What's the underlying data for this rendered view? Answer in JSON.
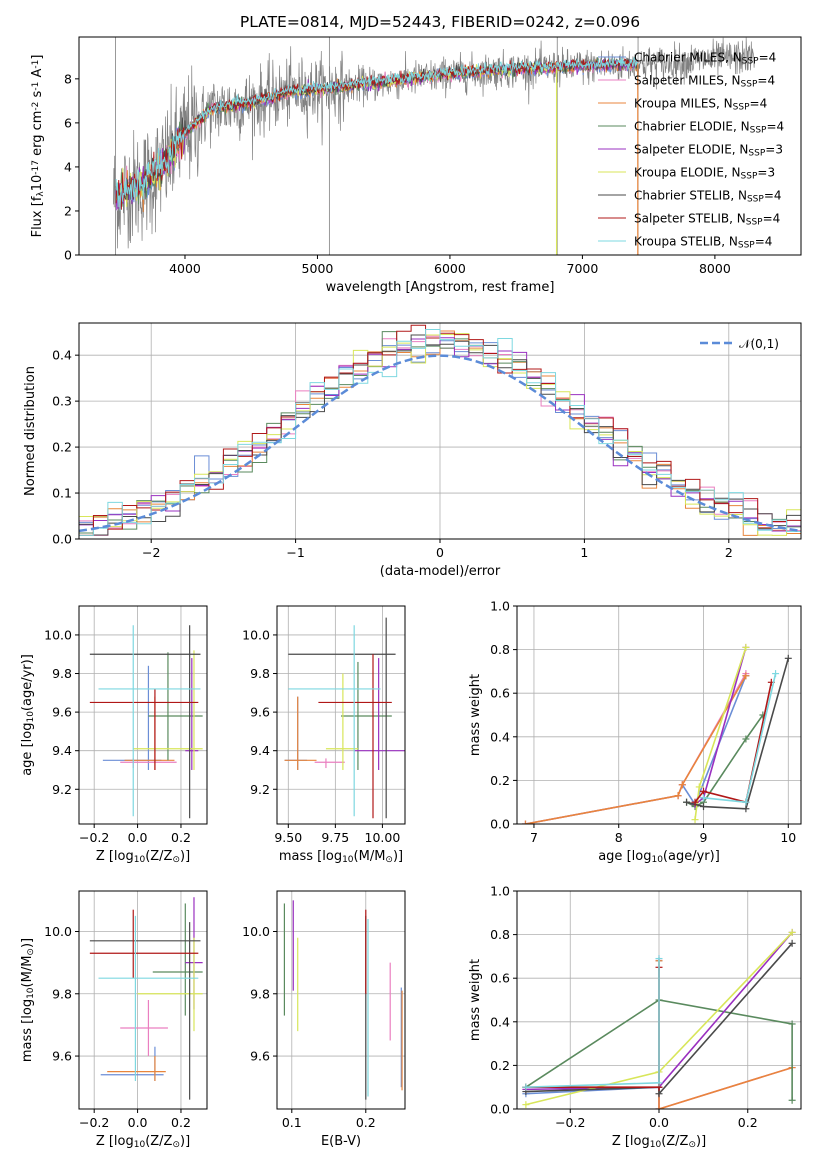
{
  "figure": {
    "title": "PLATE=0814, MJD=52443, FIBERID=0242, z=0.096"
  },
  "colors": {
    "Chabrier MILES": "#6b8ed6",
    "Salpeter MILES": "#ea7fc0",
    "Kroupa MILES": "#e8853c",
    "Chabrier ELODIE": "#5a8a5e",
    "Salpeter ELODIE": "#9a30c0",
    "Kroupa ELODIE": "#d8e65a",
    "Chabrier STELIB": "#4a4a4a",
    "Salpeter STELIB": "#b01818",
    "Kroupa STELIB": "#7ed8e0",
    "data": "#808080",
    "gaussian": "#5b8bd8"
  },
  "legend_spectrum": [
    "Chabrier MILES, N$_{SSP}$=4",
    "Salpeter MILES, N$_{SSP}$=4",
    "Kroupa MILES, N$_{SSP}$=4",
    "Chabrier ELODIE, N$_{SSP}$=4",
    "Salpeter ELODIE, N$_{SSP}$=3",
    "Kroupa ELODIE, N$_{SSP}$=3",
    "Chabrier STELIB, N$_{SSP}$=4",
    "Salpeter STELIB, N$_{SSP}$=4",
    "Kroupa STELIB, N$_{SSP}$=4"
  ],
  "chart_data": [
    {
      "id": "spectrum",
      "type": "line",
      "xlabel": "wavelength [Angstrom, rest frame]",
      "ylabel": "Flux [f$_\\lambda$10$^{-17}$ erg cm$^{-2}$ s$^{-1}$ A$^{-1}$]",
      "xlim": [
        3200,
        8650
      ],
      "ylim": [
        0,
        9.9
      ],
      "xticks": [
        4000,
        5000,
        6000,
        7000,
        8000
      ],
      "yticks": [
        0,
        2,
        4,
        6,
        8
      ],
      "continuum": {
        "x": [
          3500,
          3700,
          3850,
          4000,
          4200,
          4500,
          4800,
          5000,
          5300,
          5600,
          6000,
          6400,
          6800,
          7200,
          7600,
          8000,
          8300
        ],
        "y": [
          2.7,
          3.3,
          4.1,
          5.5,
          6.6,
          6.9,
          7.4,
          7.5,
          7.7,
          7.9,
          8.2,
          8.4,
          8.5,
          8.6,
          8.7,
          8.9,
          9.0
        ]
      },
      "data_range": [
        3460,
        8300
      ],
      "model_range": [
        3480,
        7420
      ]
    },
    {
      "id": "residuals",
      "type": "line",
      "xlabel": "(data-model)/error",
      "ylabel": "Normed distribution",
      "xlim": [
        -2.5,
        2.5
      ],
      "ylim": [
        0,
        0.47
      ],
      "xticks": [
        -2,
        -1,
        0,
        1,
        2
      ],
      "yticks": [
        0,
        0.1,
        0.2,
        0.3,
        0.4
      ],
      "legend": "$\\mathcal{N}(0,1)$",
      "bin_width": 0.1
    },
    {
      "id": "age_vs_z",
      "type": "scatter",
      "xlabel": "Z [log$_{10}$(Z/Z$_\\odot$)]",
      "ylabel": "age  [log$_{10}$(age/yr)]",
      "xlim": [
        -0.27,
        0.32
      ],
      "ylim": [
        9.02,
        10.15
      ],
      "xticks": [
        -0.2,
        0.0,
        0.2
      ],
      "yticks": [
        9.2,
        9.4,
        9.6,
        9.8,
        10.0
      ],
      "points": [
        {
          "m": "Chabrier MILES",
          "x": 0.05,
          "xe": [
            -0.16,
            0.11
          ],
          "y": 9.35,
          "ye": [
            9.3,
            9.84
          ]
        },
        {
          "m": "Salpeter MILES",
          "x": -0.02,
          "xe": [
            -0.08,
            0.18
          ],
          "y": 9.34,
          "ye": [
            9.31,
            9.36
          ]
        },
        {
          "m": "Kroupa MILES",
          "x": 0.08,
          "xe": [
            -0.06,
            0.17
          ],
          "y": 9.35,
          "ye": [
            9.3,
            9.68
          ]
        },
        {
          "m": "Chabrier ELODIE",
          "x": 0.14,
          "xe": [
            0.05,
            0.3
          ],
          "y": 9.58,
          "ye": [
            9.35,
            9.91
          ]
        },
        {
          "m": "Salpeter ELODIE",
          "x": 0.25,
          "xe": [
            0.22,
            0.28
          ],
          "y": 9.4,
          "ye": [
            9.3,
            9.88
          ]
        },
        {
          "m": "Kroupa ELODIE",
          "x": 0.26,
          "xe": [
            -0.02,
            0.3
          ],
          "y": 9.41,
          "ye": [
            9.3,
            9.92
          ]
        },
        {
          "m": "Chabrier STELIB",
          "x": 0.24,
          "xe": [
            -0.22,
            0.29
          ],
          "y": 9.9,
          "ye": [
            9.05,
            10.05
          ]
        },
        {
          "m": "Salpeter STELIB",
          "x": 0.08,
          "xe": [
            -0.22,
            0.28
          ],
          "y": 9.65,
          "ye": [
            9.3,
            9.72
          ]
        },
        {
          "m": "Kroupa STELIB",
          "x": -0.02,
          "xe": [
            -0.18,
            0.29
          ],
          "y": 9.72,
          "ye": [
            9.06,
            10.05
          ]
        }
      ]
    },
    {
      "id": "age_vs_mass",
      "type": "scatter",
      "xlabel": "mass [log$_{10}$(M/M$_\\odot$)]",
      "ylabel": "",
      "xlim": [
        9.44,
        10.12
      ],
      "ylim": [
        9.02,
        10.15
      ],
      "xticks": [
        9.5,
        9.75,
        10.0
      ],
      "xticklabels": [
        "9.50",
        "9.75",
        "10.00"
      ],
      "yticks": [
        9.2,
        9.4,
        9.6,
        9.8,
        10.0
      ],
      "points": [
        {
          "m": "Chabrier MILES",
          "x": 9.55,
          "xe": [
            9.48,
            9.6
          ],
          "y": 9.35,
          "ye": [
            9.3,
            9.68
          ]
        },
        {
          "m": "Salpeter MILES",
          "x": 9.7,
          "xe": [
            9.64,
            9.8
          ],
          "y": 9.34,
          "ye": [
            9.31,
            9.36
          ]
        },
        {
          "m": "Kroupa MILES",
          "x": 9.55,
          "xe": [
            9.48,
            9.65
          ],
          "y": 9.35,
          "ye": [
            9.3,
            9.68
          ]
        },
        {
          "m": "Chabrier ELODIE",
          "x": 9.87,
          "xe": [
            9.78,
            10.05
          ],
          "y": 9.58,
          "ye": [
            9.3,
            9.86
          ]
        },
        {
          "m": "Salpeter ELODIE",
          "x": 9.98,
          "xe": [
            9.85,
            10.12
          ],
          "y": 9.4,
          "ye": [
            9.3,
            9.88
          ]
        },
        {
          "m": "Kroupa ELODIE",
          "x": 9.79,
          "xe": [
            9.7,
            9.87
          ],
          "y": 9.41,
          "ye": [
            9.3,
            9.8
          ]
        },
        {
          "m": "Chabrier STELIB",
          "x": 10.02,
          "xe": [
            9.5,
            10.07
          ],
          "y": 9.9,
          "ye": [
            9.05,
            10.09
          ]
        },
        {
          "m": "Salpeter STELIB",
          "x": 9.95,
          "xe": [
            9.66,
            10.05
          ],
          "y": 9.65,
          "ye": [
            9.05,
            9.9
          ]
        },
        {
          "m": "Kroupa STELIB",
          "x": 9.85,
          "xe": [
            9.5,
            9.99
          ],
          "y": 9.72,
          "ye": [
            9.06,
            10.05
          ]
        }
      ]
    },
    {
      "id": "mass_weight_vs_age",
      "type": "line",
      "xlabel": "age  [log$_{10}$(age/yr)]",
      "ylabel": "mass weight",
      "xlim": [
        6.8,
        10.15
      ],
      "ylim": [
        0,
        1.0
      ],
      "xticks": [
        7,
        8,
        9,
        10
      ],
      "yticks": [
        0,
        0.2,
        0.4,
        0.6,
        0.8,
        1.0
      ],
      "series": [
        {
          "m": "Chabrier MILES",
          "x": [
            6.9,
            8.7,
            8.75,
            8.9,
            9.5
          ],
          "y": [
            0.0,
            0.13,
            0.18,
            0.09,
            0.68
          ]
        },
        {
          "m": "Salpeter MILES",
          "x": [
            6.9,
            8.7,
            8.75,
            9.5
          ],
          "y": [
            0.0,
            0.13,
            0.18,
            0.69
          ]
        },
        {
          "m": "Kroupa MILES",
          "x": [
            6.9,
            8.7,
            8.75,
            9.5
          ],
          "y": [
            0.0,
            0.13,
            0.18,
            0.68
          ]
        },
        {
          "m": "Chabrier ELODIE",
          "x": [
            8.8,
            8.9,
            9.0,
            9.5,
            9.7
          ],
          "y": [
            0.1,
            0.08,
            0.1,
            0.39,
            0.5
          ]
        },
        {
          "m": "Salpeter ELODIE",
          "x": [
            8.9,
            9.0,
            9.5
          ],
          "y": [
            0.09,
            0.12,
            0.81
          ]
        },
        {
          "m": "Kroupa ELODIE",
          "x": [
            8.9,
            8.95,
            9.5
          ],
          "y": [
            0.02,
            0.17,
            0.81
          ]
        },
        {
          "m": "Chabrier STELIB",
          "x": [
            8.8,
            9.0,
            9.5,
            10.0
          ],
          "y": [
            0.1,
            0.08,
            0.07,
            0.76
          ]
        },
        {
          "m": "Salpeter STELIB",
          "x": [
            8.9,
            9.0,
            9.5,
            9.8
          ],
          "y": [
            0.1,
            0.15,
            0.1,
            0.65
          ]
        },
        {
          "m": "Kroupa STELIB",
          "x": [
            9.0,
            9.5,
            9.85
          ],
          "y": [
            0.12,
            0.1,
            0.69
          ]
        }
      ]
    },
    {
      "id": "mass_vs_z",
      "type": "scatter",
      "xlabel": "Z [log$_{10}$(Z/Z$_\\odot$)]",
      "ylabel": "mass [log$_{10}$(M/M$_\\odot$)]",
      "xlim": [
        -0.27,
        0.32
      ],
      "ylim": [
        9.43,
        10.13
      ],
      "xticks": [
        -0.2,
        0.0,
        0.2
      ],
      "yticks": [
        9.6,
        9.8,
        10.0
      ],
      "points": [
        {
          "m": "Chabrier MILES",
          "x": 0.08,
          "xe": [
            -0.17,
            0.12
          ],
          "y": 9.54,
          "ye": [
            9.52,
            9.63
          ]
        },
        {
          "m": "Salpeter MILES",
          "x": 0.05,
          "xe": [
            -0.08,
            0.14
          ],
          "y": 9.69,
          "ye": [
            9.6,
            9.78
          ]
        },
        {
          "m": "Kroupa MILES",
          "x": 0.08,
          "xe": [
            -0.14,
            0.13
          ],
          "y": 9.55,
          "ye": [
            9.52,
            9.6
          ]
        },
        {
          "m": "Chabrier ELODIE",
          "x": 0.22,
          "xe": [
            0.07,
            0.3
          ],
          "y": 9.87,
          "ye": [
            9.73,
            10.09
          ]
        },
        {
          "m": "Salpeter ELODIE",
          "x": 0.26,
          "xe": [
            0.22,
            0.3
          ],
          "y": 9.9,
          "ye": [
            9.75,
            10.11
          ]
        },
        {
          "m": "Kroupa ELODIE",
          "x": 0.26,
          "xe": [
            0.0,
            0.3
          ],
          "y": 9.8,
          "ye": [
            9.68,
            9.98
          ]
        },
        {
          "m": "Chabrier STELIB",
          "x": 0.24,
          "xe": [
            -0.22,
            0.29
          ],
          "y": 9.97,
          "ye": [
            9.46,
            10.03
          ]
        },
        {
          "m": "Salpeter STELIB",
          "x": -0.02,
          "xe": [
            -0.22,
            0.28
          ],
          "y": 9.93,
          "ye": [
            9.85,
            10.07
          ]
        },
        {
          "m": "Kroupa STELIB",
          "x": -0.01,
          "xe": [
            -0.18,
            0.28
          ],
          "y": 9.85,
          "ye": [
            9.52,
            10.05
          ]
        }
      ]
    },
    {
      "id": "mass_vs_ebv",
      "type": "scatter",
      "xlabel": "E(B-V)",
      "ylabel": "",
      "xlim": [
        0.08,
        0.253
      ],
      "ylim": [
        9.43,
        10.13
      ],
      "xticks": [
        0.1,
        0.2
      ],
      "yticks": [
        9.6,
        9.8,
        10.0
      ],
      "points": [
        {
          "m": "Chabrier MILES",
          "x": 0.248,
          "y": 9.6,
          "ye": [
            9.5,
            9.82
          ]
        },
        {
          "m": "Salpeter MILES",
          "x": 0.233,
          "y": 9.8,
          "ye": [
            9.65,
            9.9
          ]
        },
        {
          "m": "Kroupa MILES",
          "x": 0.249,
          "y": 9.6,
          "ye": [
            9.49,
            9.81
          ]
        },
        {
          "m": "Chabrier ELODIE",
          "x": 0.09,
          "y": 9.9,
          "ye": [
            9.73,
            10.09
          ]
        },
        {
          "m": "Salpeter ELODIE",
          "x": 0.102,
          "y": 9.95,
          "ye": [
            9.81,
            10.1
          ]
        },
        {
          "m": "Kroupa ELODIE",
          "x": 0.108,
          "y": 9.85,
          "ye": [
            9.68,
            9.98
          ]
        },
        {
          "m": "Chabrier STELIB",
          "x": 0.2,
          "y": 9.9,
          "ye": [
            9.46,
            10.05
          ]
        },
        {
          "m": "Salpeter STELIB",
          "x": 0.2,
          "y": 9.95,
          "ye": [
            9.8,
            10.07
          ]
        },
        {
          "m": "Kroupa STELIB",
          "x": 0.203,
          "y": 9.8,
          "ye": [
            9.47,
            10.04
          ]
        }
      ]
    },
    {
      "id": "mass_weight_vs_z",
      "type": "line",
      "xlabel": "Z [log$_{10}$(Z/Z$_\\odot$)]",
      "ylabel": "mass weight",
      "xlim": [
        -0.32,
        0.32
      ],
      "ylim": [
        0,
        1.0
      ],
      "xticks": [
        -0.2,
        0.0,
        0.2
      ],
      "yticks": [
        0,
        0.2,
        0.4,
        0.6,
        0.8,
        1.0
      ],
      "series": [
        {
          "m": "Chabrier MILES",
          "x": [
            -0.3,
            0.0,
            0.0,
            0.0
          ],
          "y": [
            0.07,
            0.1,
            0.68,
            0.0
          ]
        },
        {
          "m": "Salpeter MILES",
          "x": [
            0.0,
            0.0,
            0.3
          ],
          "y": [
            0.69,
            0.0,
            0.19
          ]
        },
        {
          "m": "Kroupa MILES",
          "x": [
            0.0,
            0.0,
            0.3
          ],
          "y": [
            0.68,
            0.0,
            0.19
          ]
        },
        {
          "m": "Chabrier ELODIE",
          "x": [
            -0.3,
            0.0,
            0.3,
            0.3
          ],
          "y": [
            0.1,
            0.5,
            0.39,
            0.04
          ]
        },
        {
          "m": "Salpeter ELODIE",
          "x": [
            -0.3,
            0.0,
            0.3
          ],
          "y": [
            0.09,
            0.1,
            0.81
          ]
        },
        {
          "m": "Kroupa ELODIE",
          "x": [
            -0.3,
            0.0,
            0.3
          ],
          "y": [
            0.02,
            0.17,
            0.81
          ]
        },
        {
          "m": "Chabrier STELIB",
          "x": [
            -0.3,
            0.0,
            0.0,
            0.3
          ],
          "y": [
            0.08,
            0.1,
            0.07,
            0.76
          ]
        },
        {
          "m": "Salpeter STELIB",
          "x": [
            -0.3,
            0.0,
            0.0
          ],
          "y": [
            0.1,
            0.1,
            0.65
          ]
        },
        {
          "m": "Kroupa STELIB",
          "x": [
            -0.3,
            0.0,
            0.0
          ],
          "y": [
            0.1,
            0.12,
            0.69
          ]
        }
      ]
    }
  ]
}
